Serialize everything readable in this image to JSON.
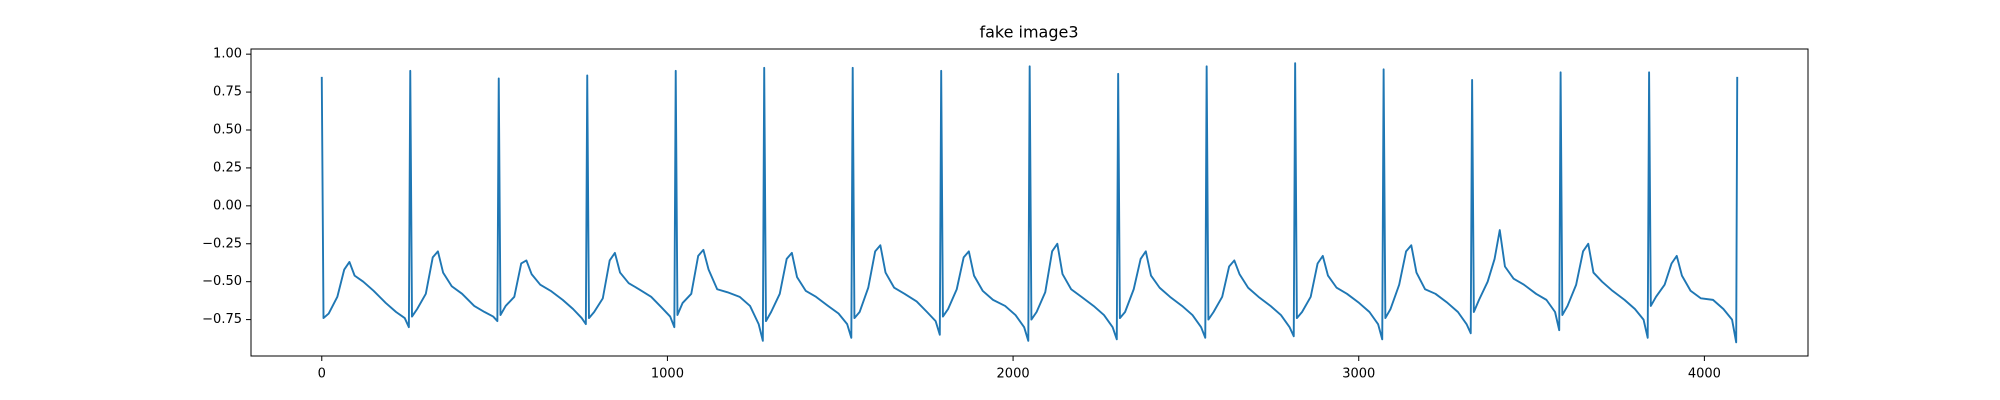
{
  "chart_data": {
    "type": "line",
    "title": "fake image3",
    "color": "#1f77b4",
    "xlim": [
      -204.75,
      4299.75
    ],
    "ylim": [
      -0.99,
      1.034
    ],
    "xticks": [
      0,
      1000,
      2000,
      3000,
      4000
    ],
    "yticks": [
      {
        "value": -0.75,
        "label": "−0.75"
      },
      {
        "value": -0.5,
        "label": "−0.50"
      },
      {
        "value": -0.25,
        "label": "−0.25"
      },
      {
        "value": 0,
        "label": "0.00"
      },
      {
        "value": 0.25,
        "label": "0.25"
      },
      {
        "value": 0.5,
        "label": "0.50"
      },
      {
        "value": 0.75,
        "label": "0.75"
      },
      {
        "value": 1,
        "label": "1.00"
      }
    ],
    "x": [
      0,
      5,
      20,
      45,
      65,
      80,
      95,
      120,
      150,
      185,
      215,
      240,
      252,
      256,
      261,
      276,
      301,
      321,
      336,
      351,
      376,
      406,
      441,
      471,
      496,
      508,
      512,
      517,
      532,
      557,
      577,
      592,
      607,
      632,
      662,
      697,
      727,
      752,
      764,
      768,
      773,
      788,
      813,
      833,
      848,
      863,
      888,
      918,
      953,
      983,
      1008,
      1020,
      1024,
      1029,
      1044,
      1069,
      1089,
      1104,
      1119,
      1144,
      1174,
      1209,
      1239,
      1264,
      1276,
      1280,
      1285,
      1300,
      1325,
      1345,
      1360,
      1375,
      1400,
      1430,
      1465,
      1495,
      1520,
      1532,
      1536,
      1541,
      1556,
      1581,
      1601,
      1616,
      1631,
      1656,
      1686,
      1721,
      1751,
      1776,
      1788,
      1792,
      1797,
      1812,
      1837,
      1857,
      1872,
      1887,
      1912,
      1942,
      1977,
      2007,
      2032,
      2044,
      2048,
      2053,
      2068,
      2093,
      2113,
      2128,
      2143,
      2168,
      2198,
      2233,
      2263,
      2288,
      2300,
      2304,
      2309,
      2324,
      2349,
      2369,
      2384,
      2399,
      2424,
      2454,
      2489,
      2519,
      2544,
      2556,
      2560,
      2565,
      2580,
      2605,
      2625,
      2640,
      2655,
      2680,
      2710,
      2745,
      2775,
      2800,
      2812,
      2816,
      2821,
      2836,
      2861,
      2881,
      2896,
      2911,
      2936,
      2966,
      3001,
      3031,
      3056,
      3068,
      3072,
      3077,
      3092,
      3117,
      3137,
      3152,
      3167,
      3192,
      3222,
      3257,
      3287,
      3312,
      3324,
      3328,
      3333,
      3348,
      3373,
      3393,
      3408,
      3423,
      3448,
      3478,
      3513,
      3543,
      3568,
      3580,
      3584,
      3589,
      3604,
      3629,
      3649,
      3664,
      3679,
      3704,
      3734,
      3769,
      3799,
      3824,
      3836,
      3840,
      3845,
      3860,
      3885,
      3905,
      3920,
      3935,
      3960,
      3990,
      4025,
      4055,
      4080,
      4092,
      4095
    ],
    "series": [
      {
        "values": [
          0.85,
          -0.74,
          -0.71,
          -0.6,
          -0.42,
          -0.37,
          -0.46,
          -0.5,
          -0.56,
          -0.64,
          -0.7,
          -0.74,
          -0.8,
          0.89,
          -0.73,
          -0.68,
          -0.58,
          -0.34,
          -0.3,
          -0.44,
          -0.53,
          -0.58,
          -0.66,
          -0.7,
          -0.73,
          -0.76,
          0.84,
          -0.72,
          -0.66,
          -0.6,
          -0.38,
          -0.36,
          -0.45,
          -0.52,
          -0.56,
          -0.62,
          -0.68,
          -0.74,
          -0.78,
          0.86,
          -0.74,
          -0.7,
          -0.61,
          -0.36,
          -0.31,
          -0.44,
          -0.51,
          -0.55,
          -0.6,
          -0.67,
          -0.73,
          -0.8,
          0.89,
          -0.72,
          -0.64,
          -0.58,
          -0.33,
          -0.29,
          -0.42,
          -0.55,
          -0.57,
          -0.6,
          -0.66,
          -0.78,
          -0.89,
          0.91,
          -0.76,
          -0.7,
          -0.58,
          -0.35,
          -0.31,
          -0.47,
          -0.56,
          -0.6,
          -0.66,
          -0.71,
          -0.78,
          -0.87,
          0.91,
          -0.74,
          -0.7,
          -0.54,
          -0.3,
          -0.26,
          -0.44,
          -0.54,
          -0.58,
          -0.63,
          -0.7,
          -0.76,
          -0.85,
          0.89,
          -0.73,
          -0.68,
          -0.55,
          -0.34,
          -0.3,
          -0.46,
          -0.56,
          -0.62,
          -0.66,
          -0.72,
          -0.8,
          -0.89,
          0.92,
          -0.75,
          -0.7,
          -0.57,
          -0.3,
          -0.25,
          -0.45,
          -0.55,
          -0.6,
          -0.66,
          -0.72,
          -0.8,
          -0.88,
          0.87,
          -0.74,
          -0.7,
          -0.55,
          -0.35,
          -0.3,
          -0.46,
          -0.54,
          -0.6,
          -0.66,
          -0.72,
          -0.8,
          -0.87,
          0.92,
          -0.75,
          -0.7,
          -0.6,
          -0.4,
          -0.36,
          -0.45,
          -0.54,
          -0.6,
          -0.66,
          -0.72,
          -0.8,
          -0.86,
          0.94,
          -0.74,
          -0.7,
          -0.6,
          -0.38,
          -0.33,
          -0.46,
          -0.54,
          -0.58,
          -0.64,
          -0.7,
          -0.78,
          -0.88,
          0.9,
          -0.74,
          -0.68,
          -0.52,
          -0.3,
          -0.26,
          -0.44,
          -0.55,
          -0.58,
          -0.64,
          -0.7,
          -0.78,
          -0.84,
          0.83,
          -0.7,
          -0.62,
          -0.5,
          -0.35,
          -0.16,
          -0.4,
          -0.48,
          -0.52,
          -0.58,
          -0.62,
          -0.7,
          -0.82,
          0.88,
          -0.72,
          -0.66,
          -0.52,
          -0.3,
          -0.25,
          -0.44,
          -0.5,
          -0.56,
          -0.62,
          -0.68,
          -0.75,
          -0.87,
          0.88,
          -0.66,
          -0.6,
          -0.52,
          -0.38,
          -0.33,
          -0.46,
          -0.56,
          -0.61,
          -0.62,
          -0.68,
          -0.75,
          -0.9,
          0.85
        ]
      }
    ]
  }
}
